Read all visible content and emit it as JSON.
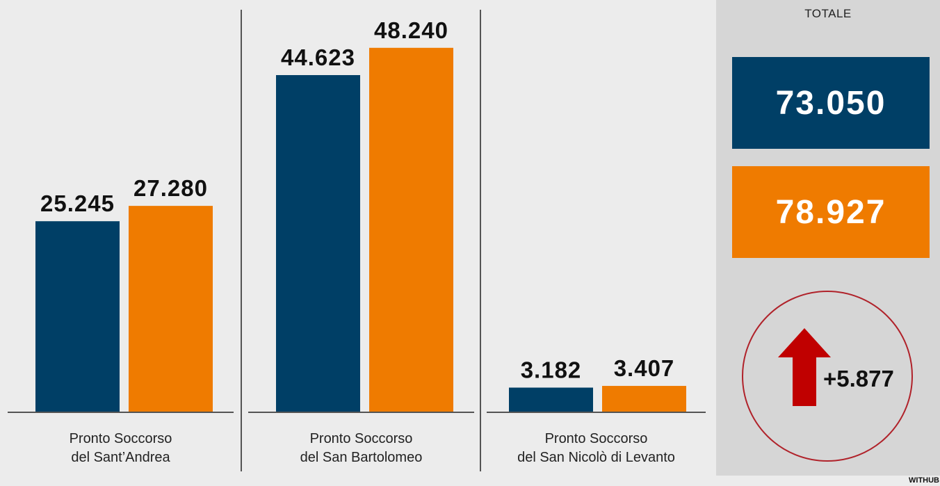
{
  "chart_data": {
    "type": "bar",
    "categories": [
      [
        "Pronto Soccorso",
        "del Sant’Andrea"
      ],
      [
        "Pronto Soccorso",
        "del San Bartolomeo"
      ],
      [
        "Pronto Soccorso",
        "del San Nicolò di Levanto"
      ]
    ],
    "series": [
      {
        "values": [
          25245,
          44623,
          3182
        ],
        "labels": [
          "25.245",
          "44.623",
          "3.182"
        ],
        "color": "#003f66"
      },
      {
        "values": [
          27280,
          48240,
          3407
        ],
        "labels": [
          "27.280",
          "48.240",
          "3.407"
        ],
        "color": "#ef7b00"
      }
    ],
    "ylim": [
      0,
      52000
    ],
    "grid": false,
    "legend": "none"
  },
  "totals": {
    "label": "TOTALE",
    "series_a": "73.050",
    "series_b": "78.927",
    "difference": "+5.877",
    "colors": {
      "series_a": "#003f66",
      "series_b": "#ef7b00",
      "arrow": "#c00000",
      "circle": "#b0222a"
    }
  },
  "credit": "WITHUB"
}
